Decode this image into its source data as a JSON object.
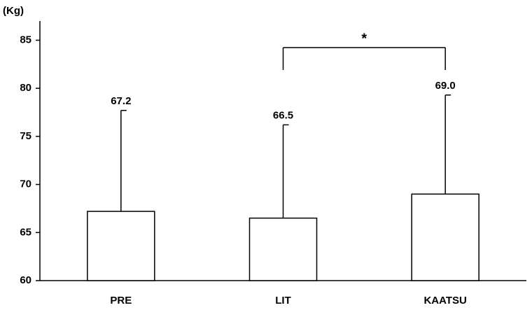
{
  "chart_data": {
    "type": "bar",
    "y_label": "(Kg)",
    "categories": [
      "PRE",
      "LIT",
      "KAATSU"
    ],
    "values": [
      67.2,
      66.5,
      69.0
    ],
    "value_labels": [
      "67.2",
      "66.5",
      "69.0"
    ],
    "errors": [
      10.5,
      9.7,
      10.3
    ],
    "color": "#ffffff",
    "ylim": [
      60,
      87
    ],
    "yticks": [
      60,
      65,
      70,
      75,
      80,
      85
    ],
    "significance": {
      "label": "*",
      "between": [
        "LIT",
        "KAATSU"
      ]
    }
  }
}
